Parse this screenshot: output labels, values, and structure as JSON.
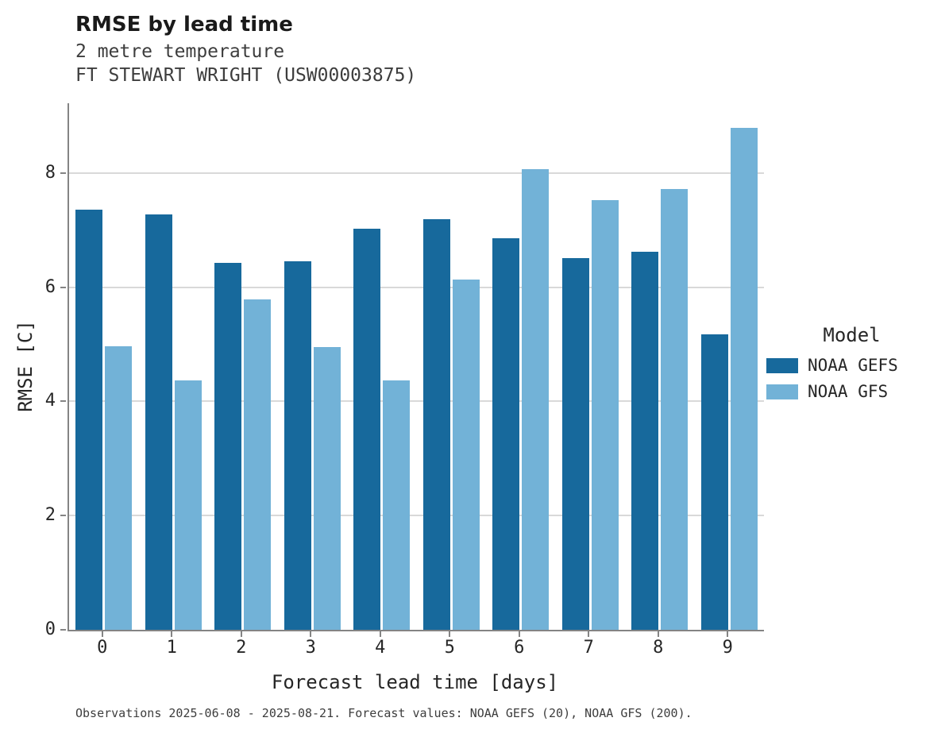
{
  "title": "RMSE by lead time",
  "subtitle_line1": "2 metre temperature",
  "subtitle_line2": "FT STEWART WRIGHT (USW00003875)",
  "footer": "Observations 2025-06-08 - 2025-08-21. Forecast values: NOAA GEFS (20), NOAA GFS (200).",
  "legend": {
    "title": "Model"
  },
  "colors": {
    "noaa_gefs": "#17699c",
    "noaa_gfs": "#72b2d7",
    "gridline": "#d9d9d9",
    "axis": "#848484"
  },
  "chart_data": {
    "type": "bar",
    "title": "RMSE by lead time",
    "subtitle": [
      "2 metre temperature",
      "FT STEWART WRIGHT (USW00003875)"
    ],
    "xlabel": "Forecast lead time [days]",
    "ylabel": "RMSE [C]",
    "categories": [
      "0",
      "1",
      "2",
      "3",
      "4",
      "5",
      "6",
      "7",
      "8",
      "9"
    ],
    "yticks": [
      0,
      2,
      4,
      6,
      8
    ],
    "ylim": [
      0,
      9.22
    ],
    "grid": "horizontal",
    "legend_position": "right",
    "legend_title": "Model",
    "series": [
      {
        "name": "NOAA GEFS",
        "color": "#17699c",
        "values": [
          7.35,
          7.27,
          6.43,
          6.45,
          7.02,
          7.19,
          6.86,
          6.51,
          6.62,
          5.18
        ]
      },
      {
        "name": "NOAA GFS",
        "color": "#72b2d7",
        "values": [
          4.97,
          4.37,
          5.78,
          4.95,
          4.37,
          6.13,
          8.07,
          7.53,
          7.72,
          8.79
        ]
      }
    ],
    "annotation": "Observations 2025-06-08 - 2025-08-21. Forecast values: NOAA GEFS (20), NOAA GFS (200)."
  }
}
